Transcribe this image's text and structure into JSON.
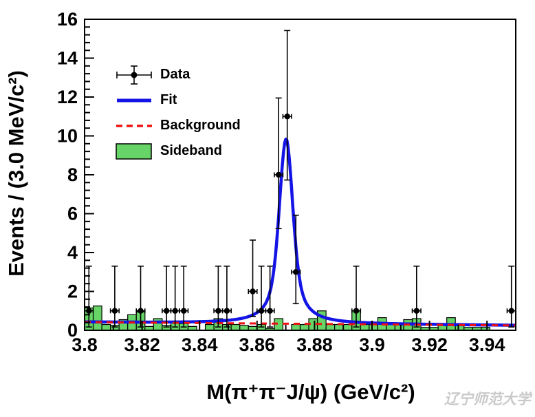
{
  "watermark": {
    "text": "辽宁师范大学"
  },
  "colors": {
    "fit": "#1414e6",
    "background": "#ee1111",
    "sideband_fill": "#66d466",
    "sideband_edge": "#000000",
    "data": "#000000",
    "frame": "#000000"
  },
  "legend": {
    "position": "top-left",
    "items": [
      {
        "label": "Data",
        "type": "marker-with-error-bars"
      },
      {
        "label": "Fit",
        "type": "solid-line"
      },
      {
        "label": "Background",
        "type": "dashed-line"
      },
      {
        "label": "Sideband",
        "type": "filled-box"
      }
    ]
  },
  "axes": {
    "x_title": "M(π⁺π⁻J/ψ) (GeV/c²)",
    "y_title": "Events / (3.0 MeV/c²)",
    "x_range": [
      3.8,
      3.95
    ],
    "y_range": [
      0,
      16
    ],
    "x_tick_values": [
      3.8,
      3.82,
      3.84,
      3.86,
      3.88,
      3.9,
      3.92,
      3.94
    ],
    "x_tick_labels": [
      "3.8",
      "3.82",
      "3.84",
      "3.86",
      "3.88",
      "3.9",
      "3.92",
      "3.94"
    ],
    "y_tick_values": [
      0,
      2,
      4,
      6,
      8,
      10,
      12,
      14,
      16
    ],
    "y_tick_labels": [
      "0",
      "2",
      "4",
      "6",
      "8",
      "10",
      "12",
      "14",
      "16"
    ],
    "x_minor_step": 0.01,
    "y_minor_step": 0.4,
    "grid": false
  },
  "chart_data": {
    "type": "bar",
    "description": "Invariant mass distribution with binned data points (Poisson errors), a signal+background fit curve, a dashed linear background curve and a green sideband histogram. Bin width 3 MeV, 50 bins from 3.8 to 3.95 GeV.",
    "bin_width_gev": 0.003,
    "data_points": [
      {
        "x": 3.8015,
        "y": 1,
        "ey_low": 0.83,
        "ey_high": 2.3
      },
      {
        "x": 3.8105,
        "y": 1,
        "ey_low": 0.83,
        "ey_high": 2.3
      },
      {
        "x": 3.8195,
        "y": 1,
        "ey_low": 0.83,
        "ey_high": 2.3
      },
      {
        "x": 3.8285,
        "y": 1,
        "ey_low": 0.83,
        "ey_high": 2.3
      },
      {
        "x": 3.8315,
        "y": 1,
        "ey_low": 0.83,
        "ey_high": 2.3
      },
      {
        "x": 3.8345,
        "y": 1,
        "ey_low": 0.83,
        "ey_high": 2.3
      },
      {
        "x": 3.8465,
        "y": 1,
        "ey_low": 0.83,
        "ey_high": 2.3
      },
      {
        "x": 3.8495,
        "y": 1,
        "ey_low": 0.83,
        "ey_high": 2.3
      },
      {
        "x": 3.8585,
        "y": 2,
        "ey_low": 1.29,
        "ey_high": 2.64
      },
      {
        "x": 3.8615,
        "y": 1,
        "ey_low": 0.83,
        "ey_high": 2.3
      },
      {
        "x": 3.8645,
        "y": 1,
        "ey_low": 0.83,
        "ey_high": 2.3
      },
      {
        "x": 3.8675,
        "y": 8,
        "ey_low": 2.77,
        "ey_high": 3.95
      },
      {
        "x": 3.8705,
        "y": 11,
        "ey_low": 3.27,
        "ey_high": 4.42
      },
      {
        "x": 3.8735,
        "y": 3,
        "ey_low": 1.63,
        "ey_high": 2.92
      },
      {
        "x": 3.8945,
        "y": 1,
        "ey_low": 0.83,
        "ey_high": 2.3
      },
      {
        "x": 3.9155,
        "y": 1,
        "ey_low": 0.83,
        "ey_high": 2.3
      },
      {
        "x": 3.9485,
        "y": 1,
        "ey_low": 0.83,
        "ey_high": 2.3
      }
    ],
    "ex_half_bin": 0.0015,
    "sideband_histogram": {
      "x_start": 3.8,
      "bin_width": 0.003,
      "values": [
        1.15,
        1.25,
        0.3,
        0.25,
        0.55,
        0.8,
        0.95,
        0.2,
        0.6,
        0.25,
        0.45,
        0.35,
        0.2,
        0,
        0.3,
        0.6,
        0.3,
        0.3,
        0.25,
        0.2,
        0.3,
        0.1,
        0.6,
        0,
        0.3,
        0.3,
        0.6,
        1.0,
        0.3,
        0.3,
        0.3,
        1.0,
        0.3,
        0.3,
        0.65,
        0.3,
        0.3,
        0.55,
        0.6,
        0.15,
        0.15,
        0.3,
        0.65,
        0.3,
        0.15,
        0.15,
        0.15,
        0,
        0,
        0
      ]
    },
    "fit_curve": {
      "shape": "pseudo-voigt-peak-plus-linear-background",
      "peak_center": 3.8701,
      "gauss_sigma": 0.0022,
      "lorentz_hwhm": 0.0035,
      "lorentz_fraction": 0.55,
      "amplitude": 9.5,
      "peak_max_value": 9.9
    },
    "background_curve": {
      "shape": "linear",
      "y_at_xmin": 0.42,
      "y_at_xmax": 0.25
    }
  }
}
